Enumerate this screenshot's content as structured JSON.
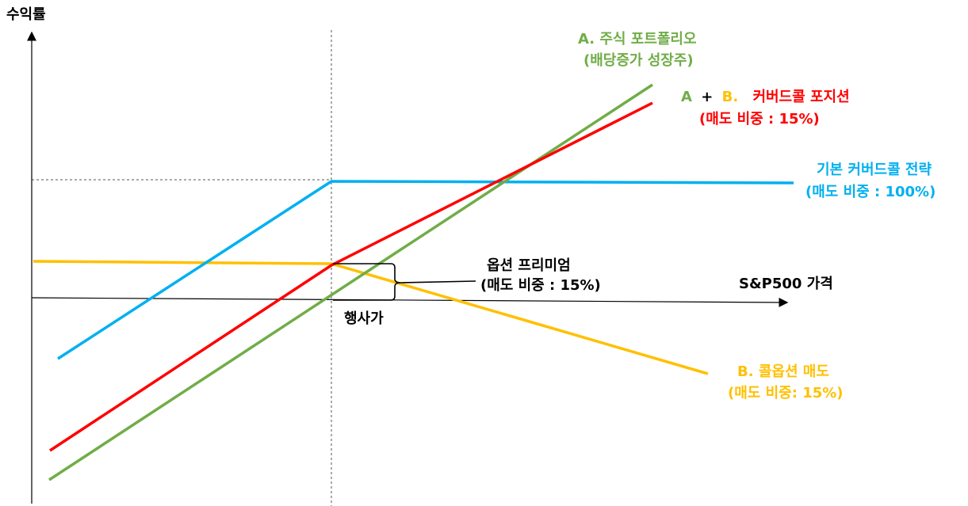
{
  "y_axis_label": "수익률",
  "x_axis_label": "S&P500 가격",
  "strike_label": "행사가",
  "premium": {
    "line1": "옵션 프리미엄",
    "line2": "(매도 비중 : 15%)"
  },
  "series": [
    {
      "key": "stock",
      "line1": "A. 주식 포트폴리오",
      "line2": "(배당증가 성장주)",
      "color": "#70AD47"
    },
    {
      "key": "covered_15",
      "prefix_a": "A",
      "plus": "+",
      "prefix_b": "B.",
      "line1_rest": "커버드콜 포지션",
      "line2": "(매도 비중 : 15%)",
      "color": "#FF0000",
      "a_color": "#70AD47",
      "b_color": "#FFC000",
      "plus_color": "#000000"
    },
    {
      "key": "covered_100",
      "line1": "기본 커버드콜 전략",
      "line2": "(매도 비중 : 100%)",
      "color": "#00B0F0"
    },
    {
      "key": "call_sell",
      "line1": "B. 콜옵션 매도",
      "line2": "(매도 비중: 15%)",
      "color": "#FFC000"
    }
  ]
}
